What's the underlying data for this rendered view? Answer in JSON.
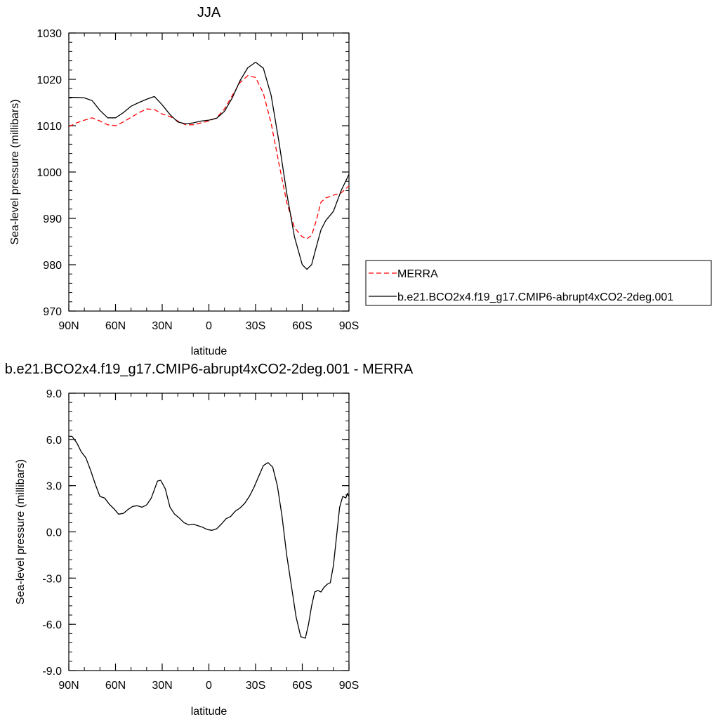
{
  "chart_data": [
    {
      "type": "line",
      "title": "JJA",
      "xlabel": "latitude",
      "ylabel": "Sea-level pressure (millibars)",
      "xlim": [
        90,
        -90
      ],
      "ylim": [
        970,
        1030
      ],
      "x_ticks": [
        90,
        60,
        30,
        0,
        -30,
        -60,
        -90
      ],
      "x_tick_labels": [
        "90N",
        "60N",
        "30N",
        "0",
        "30S",
        "60S",
        "90S"
      ],
      "y_ticks": [
        970,
        980,
        990,
        1000,
        1010,
        1020,
        1030
      ],
      "y_tick_labels": [
        "970",
        "980",
        "990",
        "1000",
        "1010",
        "1020",
        "1030"
      ],
      "grid": false,
      "legend_position": "right",
      "series": [
        {
          "name": "MERRA",
          "color": "#ff0000",
          "dash": true,
          "x": [
            90,
            85,
            80,
            75,
            70,
            65,
            60,
            55,
            50,
            45,
            40,
            35,
            30,
            25,
            20,
            15,
            10,
            5,
            0,
            -5,
            -10,
            -15,
            -20,
            -25,
            -30,
            -35,
            -40,
            -45,
            -50,
            -55,
            -60,
            -63,
            -66,
            -69,
            -72,
            -75,
            -80,
            -85,
            -90
          ],
          "y": [
            1009.8,
            1010.6,
            1011.2,
            1011.7,
            1011.0,
            1010.2,
            1010.0,
            1010.8,
            1011.8,
            1012.8,
            1013.6,
            1013.5,
            1012.5,
            1012.0,
            1011.0,
            1010.2,
            1010.2,
            1010.6,
            1011.0,
            1011.7,
            1013.6,
            1016.5,
            1019.3,
            1020.8,
            1020.4,
            1017.0,
            1010.5,
            1001.8,
            993.5,
            988.0,
            986.0,
            985.6,
            986.3,
            989.5,
            993.5,
            994.4,
            995.0,
            995.5,
            997.0
          ]
        },
        {
          "name": "b.e21.BCO2x4.f19_g17.CMIP6-abrupt4xCO2-2deg.001",
          "color": "#000000",
          "dash": false,
          "x": [
            90,
            85,
            80,
            75,
            70,
            65,
            60,
            55,
            50,
            45,
            40,
            35,
            30,
            25,
            20,
            15,
            10,
            5,
            0,
            -5,
            -10,
            -15,
            -20,
            -25,
            -30,
            -35,
            -40,
            -45,
            -50,
            -55,
            -60,
            -63,
            -66,
            -69,
            -72,
            -75,
            -80,
            -85,
            -90
          ],
          "y": [
            1016.1,
            1016.1,
            1016.0,
            1015.4,
            1013.3,
            1011.7,
            1011.7,
            1012.8,
            1014.2,
            1015.0,
            1015.7,
            1016.3,
            1014.5,
            1012.4,
            1010.8,
            1010.4,
            1010.6,
            1011.0,
            1011.2,
            1011.6,
            1013.1,
            1016.0,
            1019.7,
            1022.5,
            1023.7,
            1022.4,
            1016.5,
            1006.5,
            995.5,
            986.0,
            980.0,
            979.0,
            980.0,
            983.8,
            987.5,
            989.5,
            991.5,
            996.0,
            999.5
          ]
        }
      ]
    },
    {
      "type": "line",
      "title": "b.e21.BCO2x4.f19_g17.CMIP6-abrupt4xCO2-2deg.001 - MERRA",
      "xlabel": "latitude",
      "ylabel": "Sea-level pressure (millibars)",
      "xlim": [
        90,
        -90
      ],
      "ylim": [
        -9.0,
        9.0
      ],
      "x_ticks": [
        90,
        60,
        30,
        0,
        -30,
        -60,
        -90
      ],
      "x_tick_labels": [
        "90N",
        "60N",
        "30N",
        "0",
        "30S",
        "60S",
        "90S"
      ],
      "y_ticks": [
        -9,
        -6,
        -3,
        0,
        3,
        6,
        9
      ],
      "y_tick_labels": [
        "-9.0",
        "-6.0",
        "-3.0",
        "0.0",
        "3.0",
        "6.0",
        "9.0"
      ],
      "grid": false,
      "series": [
        {
          "color": "#000000",
          "dash": false,
          "x": [
            90,
            88,
            85,
            82,
            79,
            76,
            73,
            70,
            67,
            64,
            61,
            58,
            55,
            52,
            49,
            46,
            43,
            40,
            37,
            35,
            33,
            31,
            28,
            25,
            22,
            19,
            16,
            13,
            10,
            7,
            4,
            1,
            -2,
            -5,
            -8,
            -11,
            -14,
            -17,
            -20,
            -23,
            -26,
            -29,
            -32,
            -35,
            -38,
            -41,
            -44,
            -47,
            -50,
            -53,
            -56,
            -59,
            -62,
            -64,
            -66,
            -68,
            -70,
            -72,
            -74,
            -76,
            -78,
            -80,
            -82,
            -84,
            -86,
            -88,
            -89,
            -90
          ],
          "y": [
            6.2,
            6.2,
            5.8,
            5.2,
            4.8,
            4.0,
            3.1,
            2.3,
            2.2,
            1.8,
            1.5,
            1.15,
            1.2,
            1.45,
            1.65,
            1.7,
            1.6,
            1.75,
            2.2,
            2.75,
            3.3,
            3.35,
            2.8,
            1.6,
            1.15,
            0.9,
            0.6,
            0.45,
            0.5,
            0.4,
            0.3,
            0.15,
            0.1,
            0.2,
            0.5,
            0.85,
            1.0,
            1.35,
            1.55,
            1.85,
            2.3,
            2.9,
            3.6,
            4.3,
            4.5,
            4.2,
            3.0,
            1.0,
            -1.5,
            -3.5,
            -5.5,
            -6.8,
            -6.9,
            -6.0,
            -4.8,
            -3.9,
            -3.8,
            -3.9,
            -3.6,
            -3.4,
            -3.3,
            -2.2,
            -0.3,
            1.6,
            2.3,
            2.2,
            2.5,
            2.3
          ]
        }
      ]
    }
  ],
  "legend": {
    "items": [
      {
        "label": "MERRA",
        "color": "#ff0000",
        "dash": true
      },
      {
        "label": "b.e21.BCO2x4.f19_g17.CMIP6-abrupt4xCO2-2deg.001",
        "color": "#000000",
        "dash": false
      }
    ]
  }
}
